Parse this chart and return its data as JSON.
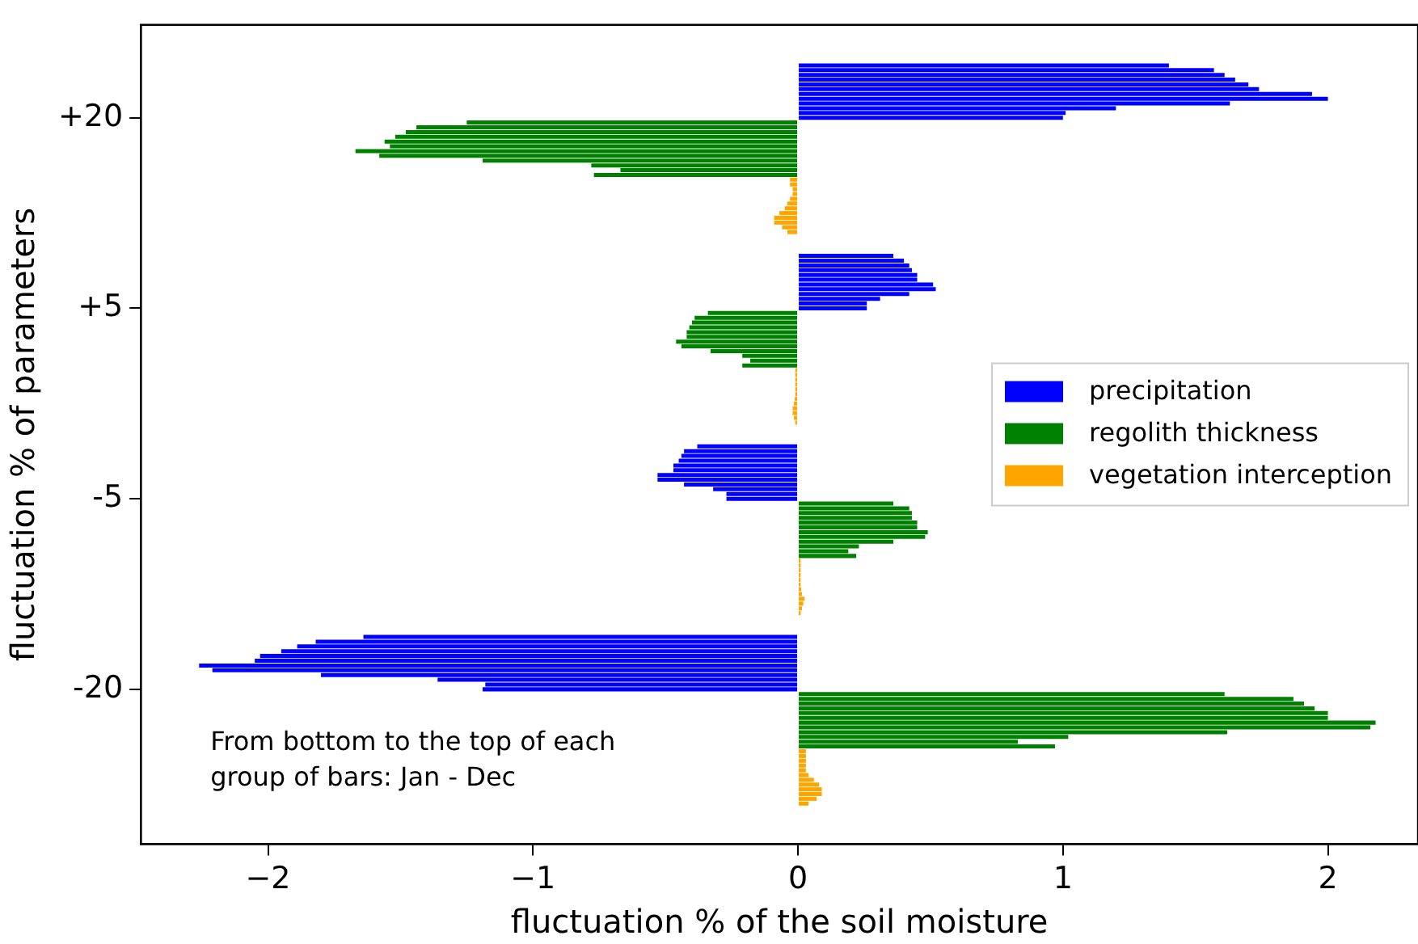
{
  "chart_data": {
    "type": "bar",
    "orientation": "horizontal",
    "xlabel": "fluctuation % of the soil moisture",
    "ylabel": "fluctuation % of parameters",
    "categories": [
      null,
      null,
      null,
      null,
      null,
      null,
      null,
      null,
      null,
      null,
      null,
      null,
      null,
      null,
      null,
      null,
      null,
      null,
      null,
      "+20",
      null,
      null,
      null,
      null,
      null,
      null,
      null,
      null,
      null,
      null,
      null,
      null,
      null,
      null,
      null,
      null,
      null,
      null,
      null,
      null,
      null,
      null,
      null,
      null,
      null,
      null,
      null,
      null,
      null,
      null,
      null,
      null,
      null,
      null,
      null,
      null,
      null,
      null,
      null,
      "+5",
      null,
      null,
      null,
      null,
      null,
      null,
      null,
      null,
      null,
      null,
      null,
      null,
      null,
      null,
      null,
      null,
      null,
      null,
      null,
      null,
      null,
      null,
      null,
      null,
      null,
      null,
      null,
      null,
      null,
      null,
      null,
      null,
      null,
      null,
      null,
      null,
      null,
      null,
      null,
      "-5",
      null,
      null,
      null,
      null,
      null,
      null,
      null,
      null,
      null,
      null,
      null,
      null,
      null,
      null,
      null,
      null,
      null,
      null,
      null,
      null,
      null,
      null,
      null,
      null,
      null,
      null,
      null,
      null,
      null,
      null,
      null,
      null,
      null,
      null,
      null,
      null,
      null,
      null,
      null,
      "-20",
      null,
      null,
      null,
      null,
      null,
      null,
      null,
      null,
      null,
      null,
      null,
      null,
      null,
      null,
      null,
      null,
      null,
      null,
      null,
      null,
      null,
      null,
      null,
      null,
      null,
      null,
      null,
      null,
      null,
      null,
      null,
      null
    ],
    "series": [
      {
        "name": "precipitation",
        "color": "#0000ff",
        "values": [
          null,
          null,
          null,
          null,
          null,
          null,
          null,
          null,
          1.4,
          1.57,
          1.61,
          1.65,
          1.7,
          1.74,
          1.94,
          2.0,
          1.63,
          1.2,
          1.01,
          1.0,
          null,
          null,
          null,
          null,
          null,
          null,
          null,
          null,
          null,
          null,
          null,
          null,
          null,
          null,
          null,
          null,
          null,
          null,
          null,
          null,
          null,
          null,
          null,
          null,
          null,
          null,
          null,
          null,
          0.36,
          0.4,
          0.42,
          0.43,
          0.45,
          0.45,
          0.51,
          0.52,
          0.42,
          0.31,
          0.26,
          0.26,
          null,
          null,
          null,
          null,
          null,
          null,
          null,
          null,
          null,
          null,
          null,
          null,
          null,
          null,
          null,
          null,
          null,
          null,
          null,
          null,
          null,
          null,
          null,
          null,
          null,
          null,
          null,
          null,
          -0.38,
          -0.43,
          -0.44,
          -0.45,
          -0.47,
          -0.47,
          -0.53,
          -0.53,
          -0.43,
          -0.32,
          -0.27,
          -0.27,
          null,
          null,
          null,
          null,
          null,
          null,
          null,
          null,
          null,
          null,
          null,
          null,
          null,
          null,
          null,
          null,
          null,
          null,
          null,
          null,
          null,
          null,
          null,
          null,
          null,
          null,
          null,
          null,
          -1.64,
          -1.82,
          -1.89,
          -1.95,
          -2.03,
          -2.05,
          -2.26,
          -2.21,
          -1.8,
          -1.36,
          -1.18,
          -1.19,
          null,
          null,
          null,
          null,
          null,
          null,
          null,
          null,
          null,
          null,
          null,
          null,
          null,
          null,
          null,
          null,
          null,
          null,
          null,
          null,
          null,
          null,
          null,
          null,
          null,
          null,
          null,
          null,
          null,
          null,
          null,
          null
        ]
      },
      {
        "name": "regolith thickness",
        "color": "#008000",
        "values": [
          null,
          null,
          null,
          null,
          null,
          null,
          null,
          null,
          null,
          null,
          null,
          null,
          null,
          null,
          null,
          null,
          null,
          null,
          null,
          null,
          -1.25,
          -1.44,
          -1.48,
          -1.52,
          -1.56,
          -1.54,
          -1.67,
          -1.58,
          -1.19,
          -0.78,
          -0.67,
          -0.77,
          null,
          null,
          null,
          null,
          null,
          null,
          null,
          null,
          null,
          null,
          null,
          null,
          null,
          null,
          null,
          null,
          null,
          null,
          null,
          null,
          null,
          null,
          null,
          null,
          null,
          null,
          null,
          null,
          -0.34,
          -0.39,
          -0.4,
          -0.41,
          -0.42,
          -0.42,
          -0.46,
          -0.44,
          -0.33,
          -0.21,
          -0.18,
          -0.21,
          null,
          null,
          null,
          null,
          null,
          null,
          null,
          null,
          null,
          null,
          null,
          null,
          null,
          null,
          null,
          null,
          null,
          null,
          null,
          null,
          null,
          null,
          null,
          null,
          null,
          null,
          null,
          null,
          0.36,
          0.42,
          0.43,
          0.43,
          0.45,
          0.45,
          0.49,
          0.48,
          0.36,
          0.23,
          0.19,
          0.22,
          null,
          null,
          null,
          null,
          null,
          null,
          null,
          null,
          null,
          null,
          null,
          null,
          null,
          null,
          null,
          null,
          null,
          null,
          null,
          null,
          null,
          null,
          null,
          null,
          null,
          null,
          null,
          null,
          1.61,
          1.87,
          1.91,
          1.95,
          2.0,
          2.0,
          2.18,
          2.16,
          1.62,
          1.02,
          0.83,
          0.97,
          null,
          null,
          null,
          null,
          null,
          null,
          null,
          null,
          null,
          null,
          null,
          null,
          null,
          null,
          null,
          null,
          null,
          null,
          null,
          null
        ]
      },
      {
        "name": "vegetation interception",
        "color": "#ffa500",
        "values": [
          null,
          null,
          null,
          null,
          null,
          null,
          null,
          null,
          null,
          null,
          null,
          null,
          null,
          null,
          null,
          null,
          null,
          null,
          null,
          null,
          null,
          null,
          null,
          null,
          null,
          null,
          null,
          null,
          null,
          null,
          null,
          null,
          -0.03,
          -0.03,
          -0.02,
          -0.02,
          -0.03,
          -0.04,
          -0.05,
          -0.07,
          -0.09,
          -0.09,
          -0.06,
          -0.04,
          null,
          null,
          null,
          null,
          null,
          null,
          null,
          null,
          null,
          null,
          null,
          null,
          null,
          null,
          null,
          null,
          null,
          null,
          null,
          null,
          null,
          null,
          null,
          null,
          null,
          null,
          null,
          null,
          -0.01,
          -0.01,
          -0.01,
          -0.01,
          -0.01,
          -0.01,
          -0.012,
          -0.015,
          -0.02,
          -0.02,
          -0.015,
          -0.01,
          null,
          null,
          null,
          null,
          null,
          null,
          null,
          null,
          null,
          null,
          null,
          null,
          null,
          null,
          null,
          null,
          null,
          null,
          null,
          null,
          null,
          null,
          null,
          null,
          null,
          null,
          null,
          null,
          0.01,
          0.01,
          0.01,
          0.01,
          0.01,
          0.01,
          0.012,
          0.015,
          0.025,
          0.02,
          0.015,
          0.01,
          null,
          null,
          null,
          null,
          null,
          null,
          null,
          null,
          null,
          null,
          null,
          null,
          null,
          null,
          null,
          null,
          null,
          null,
          null,
          null,
          null,
          null,
          null,
          null,
          null,
          null,
          null,
          null,
          0.03,
          0.03,
          0.03,
          0.03,
          0.03,
          0.04,
          0.06,
          0.08,
          0.09,
          0.09,
          0.07,
          0.04,
          null,
          null,
          null,
          null,
          null,
          null,
          null,
          null
        ]
      }
    ],
    "xlim": [
      -2.48,
      2.34
    ],
    "xticks": [
      -2,
      -1,
      0,
      1,
      2
    ],
    "legend": "right",
    "annotations": [
      "From bottom to the top of each group of bars: Jan - Dec"
    ]
  }
}
